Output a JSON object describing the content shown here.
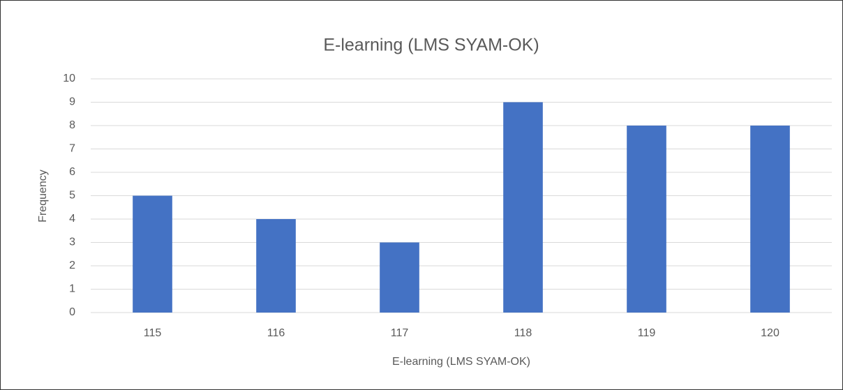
{
  "chart_data": {
    "type": "bar",
    "title": "E-learning (LMS SYAM-OK)",
    "x_label": "E-learning (LMS SYAM-OK)",
    "y_label": "Frequency",
    "categories": [
      "115",
      "116",
      "117",
      "118",
      "119",
      "120"
    ],
    "values": [
      5,
      4,
      3,
      9,
      8,
      8
    ],
    "color": "#4472c4",
    "ylim": [
      0,
      10
    ],
    "yticks": [
      0,
      1,
      2,
      3,
      4,
      5,
      6,
      7,
      8,
      9,
      10
    ],
    "grid": true
  }
}
